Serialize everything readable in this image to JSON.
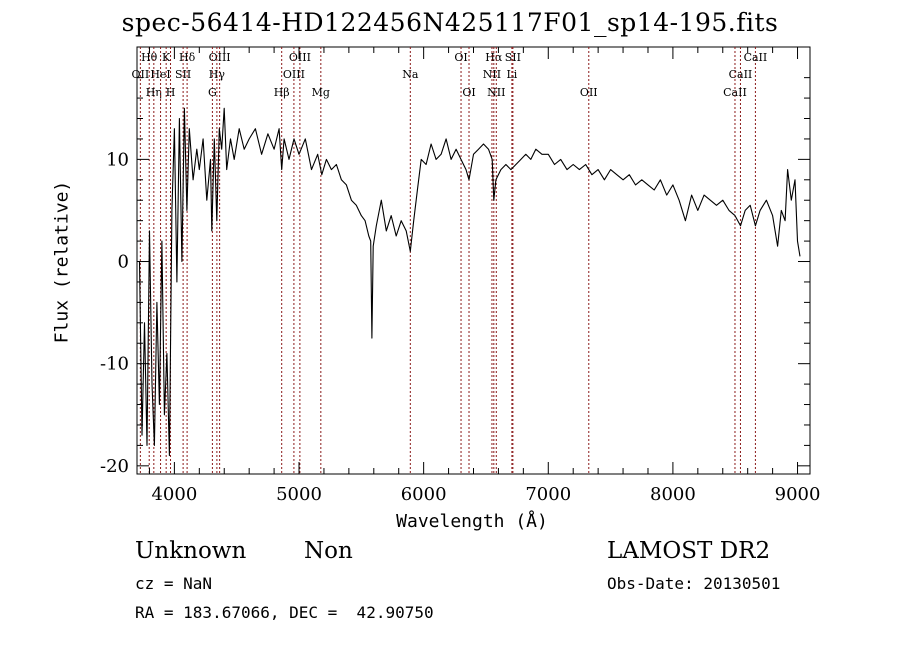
{
  "chart_data": {
    "type": "line",
    "title": "spec-56414-HD122456N425117F01_sp14-195.fits",
    "xlabel": "Wavelength (Å)",
    "ylabel": "Flux (relative)",
    "xlim": [
      3700,
      9100
    ],
    "ylim": [
      -20.8,
      21
    ],
    "x_ticks": [
      4000,
      5000,
      6000,
      7000,
      8000,
      9000
    ],
    "y_ticks": [
      -20,
      -10,
      0,
      10
    ],
    "grid": false,
    "line_color": "#000000",
    "marker_color": "#8b1a1a",
    "spectrum": [
      [
        3720,
        0
      ],
      [
        3740,
        -17
      ],
      [
        3760,
        -6
      ],
      [
        3780,
        -18
      ],
      [
        3800,
        3
      ],
      [
        3820,
        -12
      ],
      [
        3840,
        -18
      ],
      [
        3860,
        -4
      ],
      [
        3880,
        -14
      ],
      [
        3900,
        2
      ],
      [
        3920,
        -15
      ],
      [
        3940,
        -9
      ],
      [
        3960,
        -19
      ],
      [
        3980,
        5
      ],
      [
        4000,
        13
      ],
      [
        4020,
        -2
      ],
      [
        4040,
        14
      ],
      [
        4060,
        0
      ],
      [
        4080,
        15
      ],
      [
        4100,
        5
      ],
      [
        4120,
        13
      ],
      [
        4150,
        8
      ],
      [
        4180,
        11
      ],
      [
        4200,
        9
      ],
      [
        4230,
        12
      ],
      [
        4260,
        6
      ],
      [
        4290,
        10
      ],
      [
        4300,
        3
      ],
      [
        4320,
        12
      ],
      [
        4340,
        4
      ],
      [
        4360,
        13
      ],
      [
        4380,
        11
      ],
      [
        4400,
        15
      ],
      [
        4420,
        9
      ],
      [
        4450,
        12
      ],
      [
        4480,
        10
      ],
      [
        4520,
        13
      ],
      [
        4560,
        11
      ],
      [
        4600,
        12
      ],
      [
        4650,
        13
      ],
      [
        4700,
        10.5
      ],
      [
        4750,
        12.5
      ],
      [
        4800,
        11
      ],
      [
        4840,
        13
      ],
      [
        4861,
        9
      ],
      [
        4880,
        12
      ],
      [
        4920,
        10
      ],
      [
        4960,
        12
      ],
      [
        5000,
        10.5
      ],
      [
        5050,
        12
      ],
      [
        5100,
        9
      ],
      [
        5150,
        10.5
      ],
      [
        5183,
        8.5
      ],
      [
        5220,
        10
      ],
      [
        5260,
        9
      ],
      [
        5300,
        9.5
      ],
      [
        5340,
        8
      ],
      [
        5380,
        7.5
      ],
      [
        5420,
        6
      ],
      [
        5460,
        5.5
      ],
      [
        5500,
        4.5
      ],
      [
        5530,
        4
      ],
      [
        5560,
        2.5
      ],
      [
        5575,
        2
      ],
      [
        5585,
        -7.5
      ],
      [
        5595,
        1.5
      ],
      [
        5620,
        3.5
      ],
      [
        5660,
        6
      ],
      [
        5700,
        3
      ],
      [
        5740,
        4.5
      ],
      [
        5780,
        2.5
      ],
      [
        5820,
        4
      ],
      [
        5860,
        3
      ],
      [
        5893,
        1
      ],
      [
        5920,
        4
      ],
      [
        5950,
        7
      ],
      [
        5980,
        10
      ],
      [
        6020,
        9.5
      ],
      [
        6060,
        11.5
      ],
      [
        6100,
        10
      ],
      [
        6140,
        10.5
      ],
      [
        6180,
        12
      ],
      [
        6220,
        10
      ],
      [
        6260,
        11
      ],
      [
        6300,
        10
      ],
      [
        6340,
        9
      ],
      [
        6364,
        8
      ],
      [
        6400,
        10.5
      ],
      [
        6440,
        11
      ],
      [
        6480,
        11.5
      ],
      [
        6520,
        11
      ],
      [
        6550,
        10
      ],
      [
        6563,
        6
      ],
      [
        6580,
        8
      ],
      [
        6620,
        9
      ],
      [
        6660,
        9.5
      ],
      [
        6700,
        9
      ],
      [
        6740,
        9.5
      ],
      [
        6780,
        10
      ],
      [
        6820,
        10.5
      ],
      [
        6860,
        10
      ],
      [
        6900,
        11
      ],
      [
        6950,
        10.5
      ],
      [
        7000,
        10.5
      ],
      [
        7050,
        9.5
      ],
      [
        7100,
        10
      ],
      [
        7150,
        9
      ],
      [
        7200,
        9.5
      ],
      [
        7250,
        9
      ],
      [
        7300,
        9.5
      ],
      [
        7350,
        8.5
      ],
      [
        7400,
        9
      ],
      [
        7450,
        8
      ],
      [
        7500,
        9
      ],
      [
        7550,
        8.5
      ],
      [
        7600,
        8
      ],
      [
        7650,
        8.5
      ],
      [
        7700,
        7.5
      ],
      [
        7750,
        8
      ],
      [
        7800,
        7.5
      ],
      [
        7850,
        7
      ],
      [
        7900,
        8
      ],
      [
        7950,
        6.5
      ],
      [
        8000,
        7.5
      ],
      [
        8050,
        6
      ],
      [
        8100,
        4
      ],
      [
        8150,
        6.5
      ],
      [
        8200,
        5
      ],
      [
        8250,
        6.5
      ],
      [
        8300,
        6
      ],
      [
        8350,
        5.5
      ],
      [
        8400,
        6
      ],
      [
        8450,
        5
      ],
      [
        8498,
        4.5
      ],
      [
        8542,
        3.5
      ],
      [
        8580,
        5
      ],
      [
        8620,
        5.5
      ],
      [
        8662,
        3.5
      ],
      [
        8700,
        5
      ],
      [
        8750,
        6
      ],
      [
        8800,
        4.5
      ],
      [
        8840,
        1.5
      ],
      [
        8870,
        5
      ],
      [
        8900,
        4
      ],
      [
        8920,
        9
      ],
      [
        8950,
        6
      ],
      [
        8980,
        8
      ],
      [
        9000,
        2
      ],
      [
        9020,
        0.5
      ]
    ],
    "line_markers": [
      {
        "label": "Hθ",
        "wavelength": 3798,
        "row": 1
      },
      {
        "label": "OII",
        "wavelength": 3727,
        "row": 2
      },
      {
        "label": "Hη",
        "wavelength": 3835,
        "row": 3
      },
      {
        "label": "HeI",
        "wavelength": 3889,
        "row": 2
      },
      {
        "label": "K",
        "wavelength": 3934,
        "row": 1
      },
      {
        "label": "H",
        "wavelength": 3969,
        "row": 3
      },
      {
        "label": "SII",
        "wavelength": 4070,
        "row": 2
      },
      {
        "label": "Hδ",
        "wavelength": 4102,
        "row": 1
      },
      {
        "label": "OIII",
        "wavelength": 4363,
        "row": 1
      },
      {
        "label": "Hγ",
        "wavelength": 4341,
        "row": 2
      },
      {
        "label": "G",
        "wavelength": 4305,
        "row": 3
      },
      {
        "label": "Hβ",
        "wavelength": 4861,
        "row": 3
      },
      {
        "label": "OIII",
        "wavelength": 5007,
        "row": 1
      },
      {
        "label": "OIII",
        "wavelength": 4959,
        "row": 2
      },
      {
        "label": "Mg",
        "wavelength": 5175,
        "row": 3
      },
      {
        "label": "Na",
        "wavelength": 5893,
        "row": 2
      },
      {
        "label": "OI",
        "wavelength": 6300,
        "row": 1
      },
      {
        "label": "OI",
        "wavelength": 6364,
        "row": 3
      },
      {
        "label": "Hα",
        "wavelength": 6563,
        "row": 1
      },
      {
        "label": "NII",
        "wavelength": 6548,
        "row": 2
      },
      {
        "label": "NII",
        "wavelength": 6583,
        "row": 3
      },
      {
        "label": "SII",
        "wavelength": 6716,
        "row": 1
      },
      {
        "label": "Li",
        "wavelength": 6708,
        "row": 2
      },
      {
        "label": "OII",
        "wavelength": 7325,
        "row": 3
      },
      {
        "label": "CaII",
        "wavelength": 8662,
        "row": 1
      },
      {
        "label": "CaII",
        "wavelength": 8542,
        "row": 2
      },
      {
        "label": "CaII",
        "wavelength": 8498,
        "row": 3
      }
    ]
  },
  "info": {
    "class": "Unknown",
    "subclass": "Non",
    "cz": "cz = NaN",
    "radec": "RA = 183.67066, DEC =  42.90750",
    "survey": "LAMOST DR2",
    "obs_date": "Obs-Date: 20130501"
  }
}
